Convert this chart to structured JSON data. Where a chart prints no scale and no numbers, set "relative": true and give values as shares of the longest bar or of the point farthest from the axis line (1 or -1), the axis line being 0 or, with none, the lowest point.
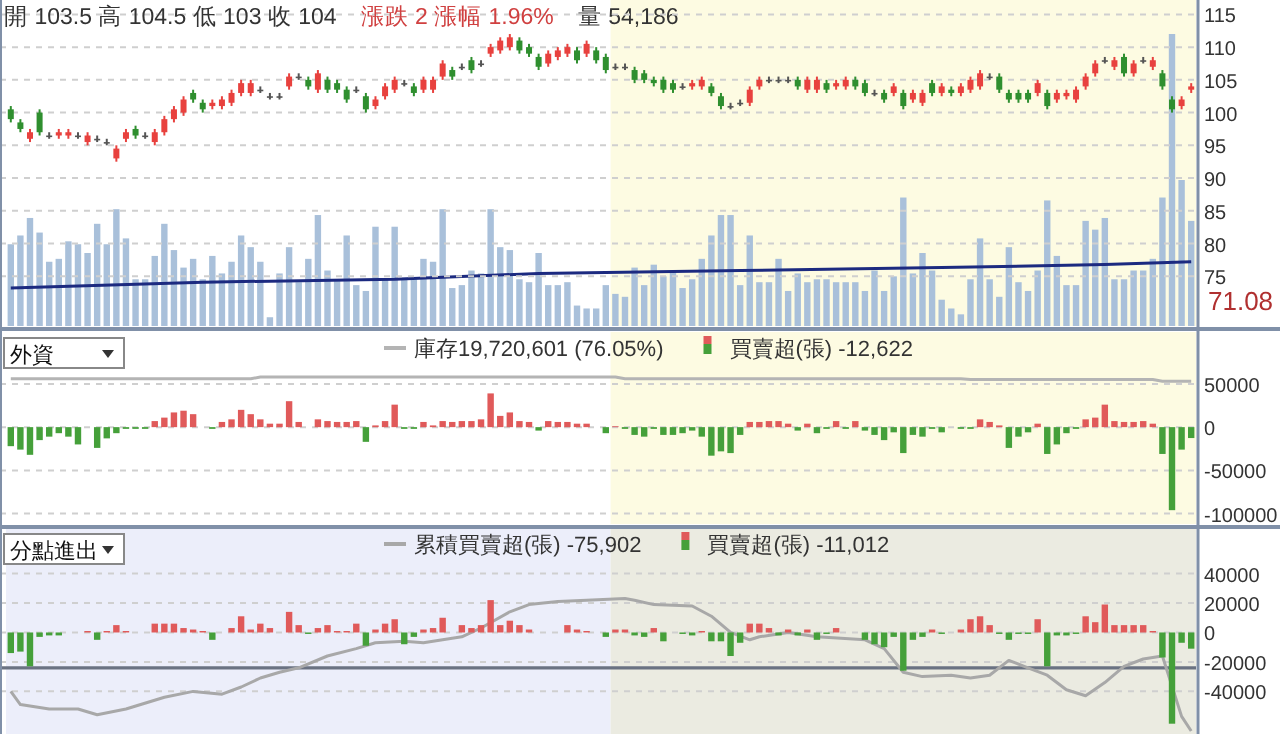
{
  "chart_data": [
    {
      "type": "candlestick",
      "title": "開 103.5  高 104.5  低 103  收 104",
      "subtitle": "漲跌 2  漲幅 1.96%",
      "annotations": [
        "71.08"
      ],
      "categories": [
        null,
        null,
        null,
        null,
        null,
        null,
        null,
        null,
        null,
        null,
        null,
        null,
        null,
        null,
        null,
        null,
        null,
        null,
        null,
        null,
        null,
        null,
        null,
        null,
        null,
        null,
        null,
        null,
        null,
        null,
        null,
        null,
        null,
        null,
        null,
        null,
        null,
        null,
        null,
        null,
        null,
        null,
        null,
        null,
        null,
        null,
        null,
        null,
        null,
        null,
        null,
        null,
        null,
        null,
        null,
        null,
        null,
        null,
        null,
        null,
        null,
        null,
        null,
        null,
        null,
        null,
        null,
        null,
        null,
        null,
        null,
        null,
        null,
        null,
        null,
        null,
        null,
        null,
        null,
        null,
        null,
        null,
        null,
        null,
        null,
        null,
        null,
        null,
        null,
        null,
        null,
        null,
        null,
        null,
        null,
        null,
        null,
        null,
        null,
        null,
        null,
        null,
        null,
        null,
        null,
        null,
        null,
        null,
        null,
        null,
        null,
        null,
        null,
        null,
        null,
        null,
        null,
        null,
        null,
        null,
        null,
        null,
        null,
        null
      ],
      "ohlc": [
        [
          100.5,
          101,
          98.5,
          99
        ],
        [
          98.5,
          99,
          97,
          97.5
        ],
        [
          96,
          97.5,
          95.5,
          97
        ],
        [
          100,
          100.5,
          96.5,
          97
        ],
        [
          96.5,
          97,
          96,
          96.5
        ],
        [
          96.5,
          97.5,
          96,
          97
        ],
        [
          96.5,
          97.5,
          96,
          97
        ],
        [
          96.5,
          97,
          96,
          96.5
        ],
        [
          95.5,
          97,
          95,
          96.5
        ],
        [
          96,
          96.5,
          95.5,
          96
        ],
        [
          95.5,
          96,
          95,
          95.5
        ],
        [
          93,
          95,
          92.5,
          94.5
        ],
        [
          96,
          97.5,
          95.5,
          97
        ],
        [
          97.5,
          98,
          96,
          96.5
        ],
        [
          96.5,
          97,
          96,
          96.5
        ],
        [
          95.5,
          97.5,
          95,
          97
        ],
        [
          97,
          99.5,
          96.5,
          99
        ],
        [
          99,
          101,
          98.5,
          100.5
        ],
        [
          100,
          102.5,
          99.5,
          102
        ],
        [
          103,
          103.5,
          101.5,
          102
        ],
        [
          101.5,
          102,
          100,
          100.5
        ],
        [
          101,
          102,
          100.5,
          101.5
        ],
        [
          101,
          102.5,
          100.5,
          102
        ],
        [
          101.5,
          103.5,
          101,
          103
        ],
        [
          103,
          105,
          102.5,
          104.5
        ],
        [
          103,
          105,
          102.5,
          104.5
        ],
        [
          103.5,
          104,
          103,
          103.5
        ],
        [
          102.5,
          103,
          102,
          102.5
        ],
        [
          102.5,
          103,
          102,
          102.5
        ],
        [
          104,
          106,
          103.5,
          105.5
        ],
        [
          105.5,
          106,
          105,
          105.5
        ],
        [
          105,
          105.5,
          103.5,
          104
        ],
        [
          103.5,
          106.5,
          103,
          106
        ],
        [
          105,
          105.5,
          103,
          103.5
        ],
        [
          104.5,
          105,
          103,
          103.5
        ],
        [
          103.5,
          104,
          101.5,
          102
        ],
        [
          103.5,
          104,
          103,
          103.5
        ],
        [
          102.5,
          103,
          100,
          100.5
        ],
        [
          101,
          102.5,
          100.5,
          102
        ],
        [
          102.5,
          104.5,
          102,
          104
        ],
        [
          103.5,
          105.5,
          103,
          105
        ],
        [
          104.5,
          105,
          104,
          104.5
        ],
        [
          104,
          104.5,
          102.5,
          103
        ],
        [
          103.5,
          105.5,
          103,
          105
        ],
        [
          103.5,
          105.5,
          103,
          105
        ],
        [
          105.5,
          108,
          105,
          107.5
        ],
        [
          106.5,
          107,
          105,
          105.5
        ],
        [
          107,
          107.5,
          106.5,
          107
        ],
        [
          108,
          108.5,
          106,
          106.5
        ],
        [
          107.5,
          108,
          107,
          107.5
        ],
        [
          109,
          110.5,
          108.5,
          110
        ],
        [
          109.5,
          111.5,
          109,
          111
        ],
        [
          110,
          112,
          109.5,
          111.5
        ],
        [
          111,
          111.5,
          109,
          109.5
        ],
        [
          110,
          110.5,
          108.5,
          109
        ],
        [
          108.5,
          109,
          106.5,
          107
        ],
        [
          107.5,
          109.5,
          107,
          109
        ],
        [
          108.5,
          110,
          108,
          109.5
        ],
        [
          109,
          110.5,
          108.5,
          110
        ],
        [
          109.5,
          110,
          107.5,
          108
        ],
        [
          109,
          111,
          108.5,
          110.5
        ],
        [
          109.5,
          110,
          107.5,
          108
        ],
        [
          108.5,
          109,
          106,
          106.5
        ],
        [
          107,
          107.5,
          106.5,
          107
        ],
        [
          107,
          107.5,
          106.5,
          107
        ],
        [
          106.5,
          107,
          104.5,
          105
        ],
        [
          106,
          106.5,
          104.5,
          105
        ],
        [
          105,
          105.5,
          104,
          104.5
        ],
        [
          105,
          105.5,
          103,
          103.5
        ],
        [
          104.5,
          105,
          103,
          103.5
        ],
        [
          104,
          104.5,
          103.5,
          104
        ],
        [
          104,
          105,
          103.5,
          104.5
        ],
        [
          104,
          105.5,
          103.5,
          105
        ],
        [
          104,
          104.5,
          102.5,
          103
        ],
        [
          102.5,
          103,
          100.5,
          101
        ],
        [
          101,
          101.5,
          100.5,
          101
        ],
        [
          101.5,
          102,
          101,
          101.5
        ],
        [
          101.5,
          104,
          101,
          103.5
        ],
        [
          104,
          105.5,
          103.5,
          105
        ],
        [
          105,
          105.5,
          104.5,
          105
        ],
        [
          105,
          105.5,
          104.5,
          105
        ],
        [
          105,
          105.5,
          104.5,
          105
        ],
        [
          105,
          105.5,
          103.5,
          104
        ],
        [
          103.5,
          105.5,
          103,
          105
        ],
        [
          103.5,
          105.5,
          103,
          105
        ],
        [
          104.5,
          105,
          103,
          103.5
        ],
        [
          104,
          105,
          103.5,
          104.5
        ],
        [
          104,
          105.5,
          103.5,
          105
        ],
        [
          105,
          105.5,
          103.5,
          104
        ],
        [
          104.5,
          105,
          102.5,
          103
        ],
        [
          103,
          103.5,
          102.5,
          103
        ],
        [
          103,
          103.5,
          101.5,
          102
        ],
        [
          103,
          104.5,
          102.5,
          104
        ],
        [
          103,
          103.5,
          100.5,
          101
        ],
        [
          102,
          103.5,
          101.5,
          103
        ],
        [
          101.5,
          103.5,
          101,
          103
        ],
        [
          104.5,
          105,
          102.5,
          103
        ],
        [
          103,
          104.5,
          102.5,
          104
        ],
        [
          103.5,
          104,
          102.5,
          103
        ],
        [
          103,
          104.5,
          102.5,
          104
        ],
        [
          103.5,
          105.5,
          103,
          105
        ],
        [
          104,
          106.5,
          103.5,
          106
        ],
        [
          105.5,
          106,
          105,
          105.5
        ],
        [
          105.5,
          106,
          103,
          103.5
        ],
        [
          103,
          103.5,
          101.5,
          102
        ],
        [
          103,
          103.5,
          101.5,
          102
        ],
        [
          103,
          103.5,
          101.5,
          102
        ],
        [
          103,
          105,
          102.5,
          104.5
        ],
        [
          103,
          103.5,
          100.5,
          101
        ],
        [
          102,
          103.5,
          101.5,
          103
        ],
        [
          102.5,
          103.5,
          102,
          103
        ],
        [
          102,
          104,
          101.5,
          103.5
        ],
        [
          104,
          106,
          103.5,
          105.5
        ],
        [
          106,
          108,
          105.5,
          107.5
        ],
        [
          108,
          108.5,
          107.5,
          108
        ],
        [
          107,
          108.5,
          106.5,
          108
        ],
        [
          108.5,
          109,
          105.5,
          106
        ],
        [
          106,
          108,
          105.5,
          107.5
        ],
        [
          108,
          108.5,
          107.5,
          108
        ],
        [
          107,
          108.5,
          106.5,
          108
        ],
        [
          106,
          106.5,
          103.5,
          104
        ],
        [
          102,
          102.5,
          100,
          100.5
        ],
        [
          101,
          102.5,
          100.5,
          102
        ],
        [
          103.5,
          104.5,
          103,
          104
        ]
      ],
      "ylim": [
        67.4,
        117.2
      ],
      "yticks": [
        75,
        80,
        85,
        90,
        95,
        100,
        105,
        110,
        115
      ],
      "grid": "y"
    },
    {
      "type": "bar",
      "title": "量 54,186",
      "relative": true,
      "categories": [
        null,
        null,
        null,
        null,
        null,
        null,
        null,
        null,
        null,
        null,
        null,
        null,
        null,
        null,
        null,
        null,
        null,
        null,
        null,
        null,
        null,
        null,
        null,
        null,
        null,
        null,
        null,
        null,
        null,
        null,
        null,
        null,
        null,
        null,
        null,
        null,
        null,
        null,
        null,
        null,
        null,
        null,
        null,
        null,
        null,
        null,
        null,
        null,
        null,
        null,
        null,
        null,
        null,
        null,
        null,
        null,
        null,
        null,
        null,
        null,
        null,
        null,
        null,
        null,
        null,
        null,
        null,
        null,
        null,
        null,
        null,
        null,
        null,
        null,
        null,
        null,
        null,
        null,
        null,
        null,
        null,
        null,
        null,
        null,
        null,
        null,
        null,
        null,
        null,
        null,
        null,
        null,
        null,
        null,
        null,
        null,
        null,
        null,
        null,
        null,
        null,
        null,
        null,
        null,
        null,
        null,
        null,
        null,
        null,
        null,
        null,
        null,
        null,
        null,
        null,
        null,
        null,
        null,
        null,
        null,
        null,
        null,
        null,
        null
      ],
      "series": [
        {
          "type": "bar",
          "color": "#a9c0da",
          "values": [
            0.28,
            0.31,
            0.37,
            0.32,
            0.22,
            0.23,
            0.29,
            0.28,
            0.25,
            0.35,
            0.28,
            0.4,
            0.3,
            0.16,
            0.16,
            0.24,
            0.35,
            0.26,
            0.2,
            0.23,
            0.16,
            0.24,
            0.18,
            0.22,
            0.31,
            0.27,
            0.22,
            0.03,
            0.18,
            0.27,
            0.15,
            0.23,
            0.38,
            0.19,
            0.16,
            0.31,
            0.14,
            0.12,
            0.34,
            0.16,
            0.34,
            0.16,
            0.16,
            0.23,
            0.22,
            0.4,
            0.13,
            0.14,
            0.19,
            0.18,
            0.4,
            0.27,
            0.26,
            0.16,
            0.15,
            0.25,
            0.14,
            0.14,
            0.15,
            0.07,
            0.06,
            0.06,
            0.14,
            0.11,
            0.1,
            0.2,
            0.14,
            0.21,
            0.17,
            0.19,
            0.13,
            0.16,
            0.23,
            0.31,
            0.38,
            0.38,
            0.14,
            0.31,
            0.15,
            0.15,
            0.23,
            0.12,
            0.18,
            0.15,
            0.16,
            0.16,
            0.15,
            0.15,
            0.15,
            0.12,
            0.19,
            0.12,
            0.17,
            0.44,
            0.18,
            0.25,
            0.19,
            0.09,
            0.06,
            0.04,
            0.16,
            0.3,
            0.16,
            0.1,
            0.27,
            0.15,
            0.12,
            0.19,
            0.43,
            0.24,
            0.14,
            0.14,
            0.36,
            0.33,
            0.37,
            0.16,
            0.16,
            0.19,
            0.19,
            0.23,
            0.44,
            1,
            0.5,
            0.36
          ]
        },
        {
          "type": "line",
          "color": "#1c2a80",
          "values": [
            0.13,
            null,
            null,
            null,
            null,
            null,
            null,
            null,
            null,
            null,
            null,
            null,
            null,
            null,
            null,
            null,
            null,
            null,
            null,
            null,
            0.15,
            null,
            null,
            null,
            null,
            null,
            null,
            null,
            null,
            null,
            null,
            null,
            null,
            null,
            null,
            null,
            null,
            null,
            null,
            null,
            0.16,
            null,
            null,
            null,
            null,
            null,
            null,
            null,
            null,
            null,
            null,
            null,
            null,
            null,
            null,
            0.18,
            null,
            null,
            null,
            null,
            null,
            null,
            null,
            null,
            null,
            null,
            null,
            null,
            null,
            null,
            null,
            null,
            null,
            null,
            null,
            null,
            0.19,
            null,
            null,
            null,
            null,
            null,
            null,
            null,
            null,
            null,
            null,
            null,
            null,
            null,
            null,
            null,
            null,
            null,
            null,
            null,
            null,
            0.2,
            null,
            null,
            null,
            null,
            null,
            null,
            null,
            null,
            null,
            null,
            null,
            null,
            null,
            null,
            null,
            null,
            0.21,
            null,
            null,
            null,
            null,
            null,
            null,
            null,
            null,
            0.22
          ]
        }
      ]
    },
    {
      "type": "bar",
      "title": "外資",
      "legend": "top",
      "categories": [
        null,
        null,
        null,
        null,
        null,
        null,
        null,
        null,
        null,
        null,
        null,
        null,
        null,
        null,
        null,
        null,
        null,
        null,
        null,
        null,
        null,
        null,
        null,
        null,
        null,
        null,
        null,
        null,
        null,
        null,
        null,
        null,
        null,
        null,
        null,
        null,
        null,
        null,
        null,
        null,
        null,
        null,
        null,
        null,
        null,
        null,
        null,
        null,
        null,
        null,
        null,
        null,
        null,
        null,
        null,
        null,
        null,
        null,
        null,
        null,
        null,
        null,
        null,
        null,
        null,
        null,
        null,
        null,
        null,
        null,
        null,
        null,
        null,
        null,
        null,
        null,
        null,
        null,
        null,
        null,
        null,
        null,
        null,
        null,
        null,
        null,
        null,
        null,
        null,
        null,
        null,
        null,
        null,
        null,
        null,
        null,
        null,
        null,
        null,
        null,
        null,
        null,
        null,
        null,
        null,
        null,
        null,
        null,
        null,
        null,
        null,
        null,
        null,
        null,
        null,
        null,
        null,
        null,
        null,
        null,
        null,
        null,
        null,
        null
      ],
      "series": [
        {
          "type": "line",
          "name": "庫存19,720,601 (76.05%)",
          "color": "#b4b4b4",
          "values": [
            56000,
            null,
            null,
            null,
            null,
            null,
            null,
            null,
            null,
            null,
            null,
            null,
            null,
            null,
            null,
            null,
            null,
            null,
            null,
            null,
            null,
            null,
            null,
            null,
            null,
            56000,
            58000,
            null,
            null,
            null,
            null,
            null,
            null,
            null,
            null,
            null,
            null,
            null,
            null,
            null,
            null,
            null,
            null,
            null,
            null,
            null,
            null,
            null,
            null,
            null,
            null,
            null,
            null,
            null,
            null,
            null,
            null,
            null,
            null,
            null,
            null,
            null,
            null,
            58000,
            56000,
            null,
            null,
            null,
            null,
            null,
            null,
            null,
            null,
            null,
            null,
            null,
            null,
            null,
            null,
            null,
            null,
            null,
            null,
            null,
            null,
            null,
            null,
            null,
            null,
            null,
            null,
            null,
            null,
            null,
            null,
            null,
            null,
            null,
            null,
            56000,
            55000,
            null,
            null,
            null,
            null,
            null,
            null,
            null,
            null,
            null,
            null,
            null,
            null,
            null,
            null,
            null,
            null,
            null,
            null,
            55000,
            53000,
            null,
            null,
            53000
          ]
        },
        {
          "type": "bar",
          "name": "買賣超(張) -12,622",
          "color": "#e05a5a",
          "colors": [
            "#45a03a",
            "#45a03a",
            "#45a03a",
            "#45a03a",
            "#45a03a",
            "#45a03a",
            "#45a03a",
            "#45a03a",
            "#e05a5a",
            "#45a03a",
            "#45a03a",
            "#45a03a",
            "#45a03a",
            "#45a03a",
            "#45a03a",
            "#e05a5a",
            "#e05a5a",
            "#e05a5a",
            "#e05a5a",
            "#e05a5a",
            "#e05a5a",
            "#45a03a",
            "#e05a5a",
            "#e05a5a",
            "#e05a5a",
            "#e05a5a",
            "#e05a5a",
            "#e05a5a",
            "#e05a5a",
            "#e05a5a",
            "#e05a5a",
            "#e05a5a",
            "#e05a5a",
            "#e05a5a",
            "#e05a5a",
            "#e05a5a",
            "#e05a5a",
            "#45a03a",
            "#e05a5a",
            "#e05a5a",
            "#e05a5a",
            "#45a03a",
            "#45a03a",
            "#e05a5a",
            "#e05a5a",
            "#e05a5a",
            "#e05a5a",
            "#e05a5a",
            "#e05a5a",
            "#e05a5a",
            "#e05a5a",
            "#e05a5a",
            "#e05a5a",
            "#e05a5a",
            "#e05a5a",
            "#45a03a",
            "#e05a5a",
            "#e05a5a",
            "#e05a5a",
            "#e05a5a",
            "#e05a5a",
            "#e05a5a",
            "#45a03a",
            "#e05a5a",
            "#45a03a",
            "#45a03a",
            "#45a03a",
            "#45a03a",
            "#45a03a",
            "#45a03a",
            "#45a03a",
            "#45a03a",
            "#45a03a",
            "#45a03a",
            "#45a03a",
            "#45a03a",
            "#45a03a",
            "#e05a5a",
            "#e05a5a",
            "#e05a5a",
            "#e05a5a",
            "#e05a5a",
            "#45a03a",
            "#e05a5a",
            "#45a03a",
            "#45a03a",
            "#e05a5a",
            "#45a03a",
            "#e05a5a",
            "#45a03a",
            "#45a03a",
            "#45a03a",
            "#45a03a",
            "#45a03a",
            "#45a03a",
            "#45a03a",
            "#45a03a",
            "#45a03a",
            "#e05a5a",
            "#45a03a",
            "#45a03a",
            "#e05a5a",
            "#e05a5a",
            "#e05a5a",
            "#45a03a",
            "#45a03a",
            "#45a03a",
            "#e05a5a",
            "#45a03a",
            "#45a03a",
            "#45a03a",
            "#45a03a",
            "#e05a5a",
            "#e05a5a",
            "#e05a5a",
            "#e05a5a",
            "#e05a5a",
            "#e05a5a",
            "#e05a5a",
            "#e05a5a",
            "#45a03a",
            "#45a03a",
            "#45a03a",
            "#45a03a"
          ],
          "values": [
            -22000,
            -26000,
            -32000,
            -15000,
            -11000,
            -7000,
            -11000,
            -20000,
            0,
            -24000,
            -13000,
            -7000,
            -2000,
            -2000,
            -2000,
            7000,
            11000,
            17000,
            19000,
            15000,
            0,
            -2000,
            6000,
            9000,
            20000,
            15000,
            9000,
            4000,
            4000,
            30000,
            6000,
            0,
            9000,
            7000,
            6000,
            6000,
            7000,
            -17000,
            2000,
            7000,
            26000,
            -2000,
            -2000,
            6000,
            2000,
            7000,
            6000,
            7000,
            7000,
            9000,
            39000,
            13000,
            17000,
            7000,
            6000,
            -4000,
            7000,
            6000,
            6000,
            4000,
            4000,
            0,
            -7000,
            1000,
            -2000,
            -9000,
            -11000,
            -2000,
            -9000,
            -9000,
            -7000,
            -4000,
            -11000,
            -33000,
            -28000,
            -30000,
            -9000,
            6000,
            6000,
            7000,
            7000,
            4000,
            -4000,
            4000,
            -7000,
            -2000,
            7000,
            -2000,
            7000,
            -4000,
            -9000,
            -15000,
            -6000,
            -30000,
            -9000,
            -11000,
            -2000,
            -6000,
            0,
            -2000,
            -2000,
            9000,
            6000,
            2000,
            -24000,
            -11000,
            -6000,
            4000,
            -31000,
            -20000,
            -7000,
            -2000,
            9000,
            11000,
            26000,
            7000,
            6000,
            6000,
            7000,
            4000,
            -31000,
            -96000,
            -26000,
            -12622
          ]
        }
      ],
      "ylim": [
        -112000,
        110000
      ],
      "yticks": [
        50000,
        0,
        -50000,
        -100000
      ],
      "grid": "y"
    },
    {
      "type": "bar",
      "title": "分點進出",
      "legend": "top",
      "categories": [
        null,
        null,
        null,
        null,
        null,
        null,
        null,
        null,
        null,
        null,
        null,
        null,
        null,
        null,
        null,
        null,
        null,
        null,
        null,
        null,
        null,
        null,
        null,
        null,
        null,
        null,
        null,
        null,
        null,
        null,
        null,
        null,
        null,
        null,
        null,
        null,
        null,
        null,
        null,
        null,
        null,
        null,
        null,
        null,
        null,
        null,
        null,
        null,
        null,
        null,
        null,
        null,
        null,
        null,
        null,
        null,
        null,
        null,
        null,
        null,
        null,
        null,
        null,
        null,
        null,
        null,
        null,
        null,
        null,
        null,
        null,
        null,
        null,
        null,
        null,
        null,
        null,
        null,
        null,
        null,
        null,
        null,
        null,
        null,
        null,
        null,
        null,
        null,
        null,
        null,
        null,
        null,
        null,
        null,
        null,
        null,
        null,
        null,
        null,
        null,
        null,
        null,
        null,
        null,
        null,
        null,
        null,
        null,
        null,
        null,
        null,
        null,
        null,
        null,
        null,
        null,
        null,
        null,
        null,
        null,
        null,
        null,
        null,
        null
      ],
      "series": [
        {
          "type": "line",
          "name": "累積買賣超(張) -75,902",
          "color": "#a8a8a8",
          "values": [
            -40000,
            -49000,
            null,
            null,
            -52000,
            null,
            null,
            -52000,
            null,
            -56000,
            null,
            null,
            -52000,
            null,
            null,
            null,
            -44000,
            null,
            null,
            -40000,
            null,
            null,
            -42000,
            null,
            -37000,
            null,
            -31000,
            null,
            -27000,
            null,
            -24000,
            null,
            null,
            -16000,
            null,
            null,
            -11000,
            null,
            -7000,
            null,
            null,
            -6000,
            null,
            -7000,
            null,
            null,
            null,
            -3000,
            null,
            3000,
            null,
            null,
            14000,
            null,
            19000,
            null,
            null,
            21000,
            null,
            null,
            22000,
            null,
            null,
            null,
            23000,
            22000,
            null,
            19000,
            null,
            null,
            null,
            18000,
            null,
            11000,
            null,
            0,
            null,
            -5000,
            -3000,
            null,
            null,
            0,
            null,
            null,
            -3000,
            null,
            null,
            null,
            null,
            -5000,
            null,
            -11000,
            null,
            -27000,
            null,
            -30000,
            null,
            null,
            -29000,
            null,
            -31000,
            null,
            -29000,
            null,
            -19000,
            null,
            -24000,
            null,
            -29000,
            null,
            -39000,
            null,
            -43000,
            null,
            -34000,
            null,
            -23000,
            null,
            -18000,
            null,
            -16000,
            null,
            -57000,
            -67000
          ]
        },
        {
          "type": "bar",
          "name": "買賣超(張) -11,012",
          "color": "#e05a5a",
          "colors": [
            "#45a03a",
            "#45a03a",
            "#45a03a",
            "#45a03a",
            "#45a03a",
            "#45a03a",
            "#e05a5a",
            "#e05a5a",
            "#e05a5a",
            "#45a03a",
            "#e05a5a",
            "#e05a5a",
            "#e05a5a",
            "#e05a5a",
            "#e05a5a",
            "#e05a5a",
            "#e05a5a",
            "#e05a5a",
            "#e05a5a",
            "#e05a5a",
            "#e05a5a",
            "#45a03a",
            "#e05a5a",
            "#e05a5a",
            "#e05a5a",
            "#e05a5a",
            "#e05a5a",
            "#e05a5a",
            "#e05a5a",
            "#e05a5a",
            "#e05a5a",
            "#45a03a",
            "#e05a5a",
            "#e05a5a",
            "#e05a5a",
            "#e05a5a",
            "#e05a5a",
            "#45a03a",
            "#e05a5a",
            "#e05a5a",
            "#e05a5a",
            "#45a03a",
            "#45a03a",
            "#e05a5a",
            "#e05a5a",
            "#e05a5a",
            "#e05a5a",
            "#e05a5a",
            "#e05a5a",
            "#e05a5a",
            "#e05a5a",
            "#e05a5a",
            "#e05a5a",
            "#e05a5a",
            "#e05a5a",
            "#e05a5a",
            "#e05a5a",
            "#e05a5a",
            "#e05a5a",
            "#e05a5a",
            "#e05a5a",
            "#e05a5a",
            "#45a03a",
            "#e05a5a",
            "#e05a5a",
            "#45a03a",
            "#45a03a",
            "#e05a5a",
            "#45a03a",
            "#e05a5a",
            "#45a03a",
            "#45a03a",
            "#e05a5a",
            "#45a03a",
            "#45a03a",
            "#45a03a",
            "#45a03a",
            "#e05a5a",
            "#e05a5a",
            "#e05a5a",
            "#45a03a",
            "#e05a5a",
            "#45a03a",
            "#e05a5a",
            "#45a03a",
            "#45a03a",
            "#e05a5a",
            "#e05a5a",
            "#e05a5a",
            "#45a03a",
            "#45a03a",
            "#45a03a",
            "#45a03a",
            "#45a03a",
            "#45a03a",
            "#45a03a",
            "#e05a5a",
            "#45a03a",
            "#e05a5a",
            "#e05a5a",
            "#e05a5a",
            "#e05a5a",
            "#e05a5a",
            "#45a03a",
            "#45a03a",
            "#45a03a",
            "#45a03a",
            "#e05a5a",
            "#45a03a",
            "#45a03a",
            "#45a03a",
            "#45a03a",
            "#e05a5a",
            "#e05a5a",
            "#e05a5a",
            "#e05a5a",
            "#e05a5a",
            "#e05a5a",
            "#e05a5a",
            "#e05a5a",
            "#45a03a",
            "#45a03a",
            "#45a03a",
            "#45a03a"
          ],
          "values": [
            -14000,
            -13000,
            -23000,
            -3000,
            -2000,
            -2000,
            0,
            0,
            1000,
            -5000,
            1000,
            5000,
            1000,
            0,
            0,
            6000,
            6000,
            6000,
            3000,
            2000,
            1000,
            -5000,
            0,
            3000,
            11000,
            2000,
            6000,
            3000,
            0,
            14000,
            5000,
            -1000,
            3000,
            5000,
            1000,
            1000,
            6000,
            -9000,
            2000,
            6000,
            9000,
            -8000,
            -3000,
            2000,
            3000,
            10000,
            0,
            5000,
            3000,
            5000,
            22000,
            5000,
            8000,
            5000,
            2000,
            0,
            0,
            0,
            5000,
            2000,
            1000,
            0,
            -3000,
            2000,
            2000,
            -2000,
            -3000,
            3000,
            -6000,
            0,
            -1000,
            -2000,
            1000,
            -6000,
            -6000,
            -16000,
            -7000,
            6000,
            6000,
            3000,
            -2000,
            2000,
            -2000,
            2000,
            -5000,
            -1000,
            3000,
            0,
            0,
            -5000,
            -8000,
            -10000,
            -3000,
            -26000,
            -5000,
            -3000,
            2000,
            -1000,
            0,
            2000,
            9000,
            11000,
            5000,
            -1000,
            -5000,
            -1000,
            -1000,
            9000,
            -23000,
            -2000,
            -2000,
            -1000,
            11000,
            7000,
            19000,
            5000,
            5000,
            5000,
            5000,
            1000,
            -17000,
            -62000,
            -7000,
            -11012
          ]
        }
      ],
      "ylim": [
        -69000,
        71000
      ],
      "yticks": [
        40000,
        20000,
        0,
        -20000,
        -40000
      ],
      "grid": "y",
      "ref_lines": [
        {
          "axis": "y",
          "value": -24000,
          "color": "#6a7282"
        }
      ]
    }
  ]
}
